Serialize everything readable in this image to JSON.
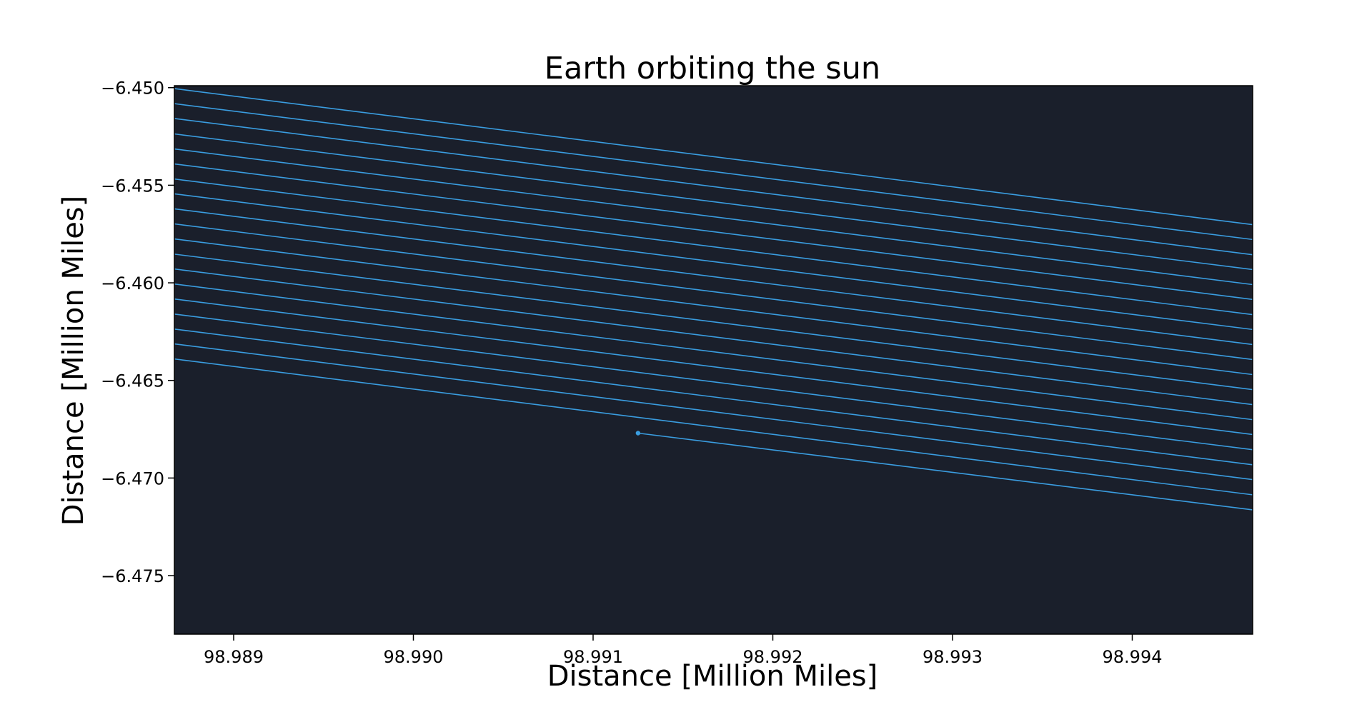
{
  "chart_data": {
    "type": "line",
    "title": "Earth orbiting the sun",
    "xlabel": "Distance [Million Miles]",
    "ylabel": "Distance [Million Miles]",
    "xlim": [
      98.98867,
      98.99467
    ],
    "ylim": [
      -6.478,
      -6.4499
    ],
    "x_ticks": [
      98.989,
      98.99,
      98.991,
      98.992,
      98.993,
      98.994
    ],
    "x_tick_labels": [
      "98.989",
      "98.990",
      "98.991",
      "98.992",
      "98.993",
      "98.994"
    ],
    "y_ticks": [
      -6.45,
      -6.455,
      -6.46,
      -6.465,
      -6.47,
      -6.475
    ],
    "y_tick_labels": [
      "−6.450",
      "−6.455",
      "−6.460",
      "−6.465",
      "−6.470",
      "−6.475"
    ],
    "grid": false,
    "colors": {
      "background": "#1a1f2b",
      "line": "#3a9de0"
    },
    "series": [
      {
        "segments": [
          {
            "start": [
              98.98867,
              -6.45005
            ],
            "end": [
              98.99467,
              -6.45702
            ]
          },
          {
            "start": [
              98.98867,
              -6.45082
            ],
            "end": [
              98.99467,
              -6.45778
            ]
          },
          {
            "start": [
              98.98867,
              -6.45158
            ],
            "end": [
              98.99467,
              -6.45856
            ]
          },
          {
            "start": [
              98.98867,
              -6.45237
            ],
            "end": [
              98.99467,
              -6.45932
            ]
          },
          {
            "start": [
              98.98867,
              -6.45314
            ],
            "end": [
              98.99467,
              -6.46009
            ]
          },
          {
            "start": [
              98.98867,
              -6.45391
            ],
            "end": [
              98.99467,
              -6.46085
            ]
          },
          {
            "start": [
              98.98867,
              -6.45468
            ],
            "end": [
              98.99467,
              -6.46163
            ]
          },
          {
            "start": [
              98.98867,
              -6.45544
            ],
            "end": [
              98.99467,
              -6.46239
            ]
          },
          {
            "start": [
              98.98867,
              -6.45621
            ],
            "end": [
              98.99467,
              -6.46316
            ]
          },
          {
            "start": [
              98.98867,
              -6.45698
            ],
            "end": [
              98.99467,
              -6.46393
            ]
          },
          {
            "start": [
              98.98867,
              -6.45775
            ],
            "end": [
              98.99467,
              -6.4647
            ]
          },
          {
            "start": [
              98.98867,
              -6.45853
            ],
            "end": [
              98.99467,
              -6.46547
            ]
          },
          {
            "start": [
              98.98867,
              -6.45929
            ],
            "end": [
              98.99467,
              -6.46624
            ]
          },
          {
            "start": [
              98.98867,
              -6.46006
            ],
            "end": [
              98.99467,
              -6.46701
            ]
          },
          {
            "start": [
              98.98867,
              -6.46083
            ],
            "end": [
              98.99467,
              -6.46777
            ]
          },
          {
            "start": [
              98.98867,
              -6.4616
            ],
            "end": [
              98.99467,
              -6.46855
            ]
          },
          {
            "start": [
              98.98867,
              -6.46237
            ],
            "end": [
              98.99467,
              -6.46932
            ]
          },
          {
            "start": [
              98.98867,
              -6.46313
            ],
            "end": [
              98.99467,
              -6.47008
            ]
          },
          {
            "start": [
              98.98867,
              -6.4639
            ],
            "end": [
              98.99467,
              -6.47086
            ]
          },
          {
            "start": [
              98.99125,
              -6.4677
            ],
            "end": [
              98.99467,
              -6.47163
            ]
          }
        ],
        "marker": [
          98.99125,
          -6.4677
        ]
      }
    ]
  }
}
